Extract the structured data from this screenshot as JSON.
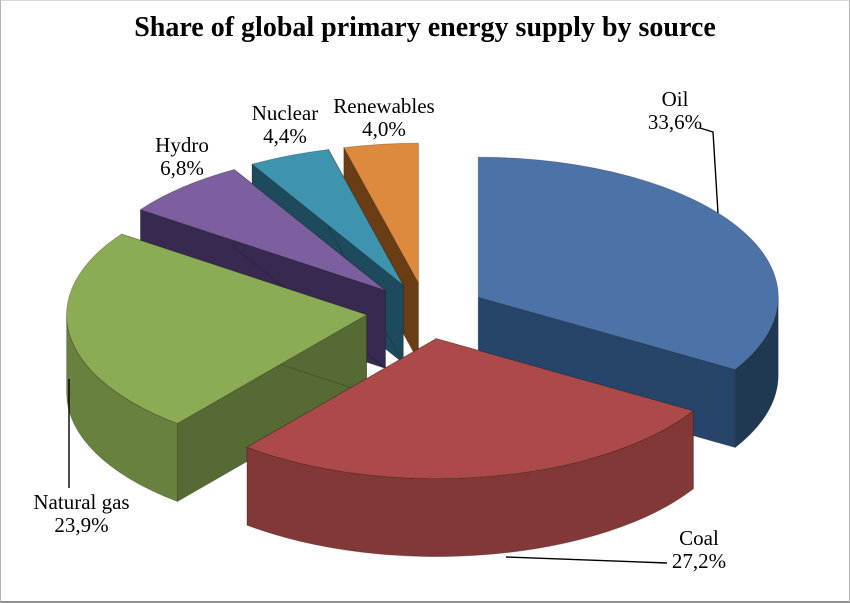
{
  "chart_data": {
    "type": "pie",
    "style": "3d-exploded",
    "title": "Share of global primary energy supply by source",
    "direction": "clockwise",
    "start_angle_deg": 0,
    "legend": "none",
    "label_format": "category name + percent value, comma decimal separator",
    "background": "#ffffff",
    "slices": [
      {
        "label": "Oil",
        "value": 33.6,
        "value_label": "33,6%",
        "color": "#4C73A8",
        "side_color": "#1F3952",
        "wall_color": "#27456B"
      },
      {
        "label": "Coal",
        "value": 27.2,
        "value_label": "27,2%",
        "color": "#AB4A48",
        "side_color": "#823836",
        "wall_color": "#6F302E"
      },
      {
        "label": "Natural gas",
        "value": 23.9,
        "value_label": "23,9%",
        "color": "#8BAB55",
        "side_color": "#69813F",
        "wall_color": "#566B33"
      },
      {
        "label": "Hydro",
        "value": 6.8,
        "value_label": "6,8%",
        "color": "#7C5F9E",
        "side_color": "#37294F",
        "wall_color": "#37294F"
      },
      {
        "label": "Nuclear",
        "value": 4.4,
        "value_label": "4,4%",
        "color": "#3E93AE",
        "side_color": "#1D4A5C",
        "wall_color": "#1D4A5C"
      },
      {
        "label": "Renewables",
        "value": 4.0,
        "value_label": "4,0%",
        "color": "#DD8A3E",
        "side_color": "#6B3D15",
        "wall_color": "#6B3D15"
      }
    ]
  }
}
